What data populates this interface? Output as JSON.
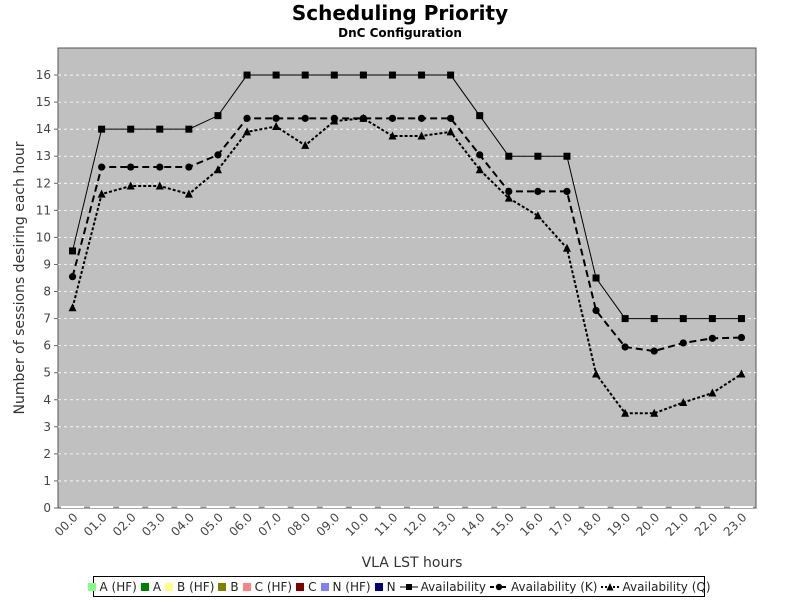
{
  "chart_data": {
    "type": "line",
    "title": "Scheduling Priority",
    "subtitle": "DnC Configuration",
    "xlabel": "VLA LST hours",
    "ylabel": "Number of sessions desiring each hour",
    "categories": [
      "00.0",
      "01.0",
      "02.0",
      "03.0",
      "04.0",
      "05.0",
      "06.0",
      "07.0",
      "08.0",
      "09.0",
      "10.0",
      "11.0",
      "12.0",
      "13.0",
      "14.0",
      "15.0",
      "16.0",
      "17.0",
      "18.0",
      "19.0",
      "20.0",
      "21.0",
      "22.0",
      "23.0"
    ],
    "ylim": [
      0,
      17
    ],
    "yticks": [
      0,
      1,
      2,
      3,
      4,
      5,
      6,
      7,
      8,
      9,
      10,
      11,
      12,
      13,
      14,
      15,
      16
    ],
    "grid": true,
    "plot_background": "#c0c0c0",
    "legend_position": "bottom",
    "legend": [
      {
        "label": "A (HF)",
        "color": "#80ff80",
        "kind": "swatch"
      },
      {
        "label": "A",
        "color": "#008000",
        "kind": "swatch"
      },
      {
        "label": "B (HF)",
        "color": "#ffff80",
        "kind": "swatch"
      },
      {
        "label": "B",
        "color": "#808000",
        "kind": "swatch"
      },
      {
        "label": "C (HF)",
        "color": "#ff8080",
        "kind": "swatch"
      },
      {
        "label": "C",
        "color": "#800000",
        "kind": "swatch"
      },
      {
        "label": "N (HF)",
        "color": "#8080ff",
        "kind": "swatch"
      },
      {
        "label": "N",
        "color": "#000080",
        "kind": "swatch"
      },
      {
        "label": "Availability",
        "kind": "line",
        "marker": "square",
        "dash": "solid"
      },
      {
        "label": "Availability (K)",
        "kind": "line",
        "marker": "circle",
        "dash": "dashed"
      },
      {
        "label": "Availability (Q)",
        "kind": "line",
        "marker": "triangle",
        "dash": "dotted"
      }
    ],
    "series": [
      {
        "name": "Availability",
        "marker": "square",
        "dash": "solid",
        "values": [
          9.5,
          14,
          14,
          14,
          14,
          14.5,
          16,
          16,
          16,
          16,
          16,
          16,
          16,
          16,
          14.5,
          13,
          13,
          13,
          8.5,
          7,
          7,
          7,
          7,
          7
        ]
      },
      {
        "name": "Availability (K)",
        "marker": "circle",
        "dash": "dashed",
        "values": [
          8.55,
          12.6,
          12.6,
          12.6,
          12.6,
          13.05,
          14.4,
          14.4,
          14.4,
          14.4,
          14.4,
          14.4,
          14.4,
          14.4,
          13.05,
          11.7,
          11.7,
          11.7,
          7.3,
          5.95,
          5.8,
          6.1,
          6.27,
          6.3
        ]
      },
      {
        "name": "Availability (Q)",
        "marker": "triangle",
        "dash": "dotted",
        "values": [
          7.4,
          11.6,
          11.9,
          11.9,
          11.6,
          12.5,
          13.9,
          14.1,
          13.4,
          14.3,
          14.4,
          13.75,
          13.75,
          13.9,
          12.5,
          11.45,
          10.8,
          9.6,
          4.95,
          3.5,
          3.5,
          3.9,
          4.25,
          4.95
        ]
      }
    ]
  }
}
